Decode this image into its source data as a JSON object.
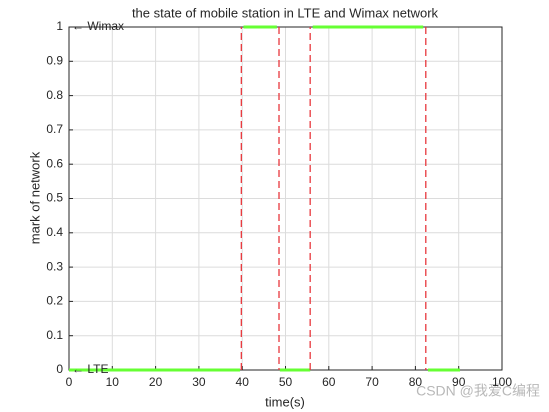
{
  "chart_data": {
    "type": "line",
    "title": "the state of mobile station in LTE and Wimax network",
    "x_label": "time(s)",
    "y_label": "mark of network",
    "xlim": [
      0,
      100
    ],
    "xticks": [
      0,
      10,
      20,
      30,
      40,
      50,
      60,
      70,
      80,
      90,
      100
    ],
    "ylim": [
      0,
      1
    ],
    "yticks": [
      0,
      0.1,
      0.2,
      0.3,
      0.4,
      0.5,
      0.6,
      0.7,
      0.8,
      0.9,
      1
    ],
    "grid": true,
    "series": [
      {
        "color": "#66ff33",
        "markers": true,
        "x": [
          0,
          39.5,
          null,
          40.3,
          48,
          null,
          48.7,
          55.7,
          null,
          56.3,
          81.8,
          null,
          82.9,
          90.3
        ],
        "values": [
          0,
          0,
          null,
          1,
          1,
          null,
          0,
          0,
          null,
          1,
          1,
          null,
          0,
          0
        ]
      },
      {
        "color": "#e8383d",
        "dashed": true,
        "x": [
          39.8,
          39.8,
          null,
          48.5,
          48.5,
          null,
          55.7,
          55.7,
          null,
          82.4,
          82.4
        ],
        "values": [
          0,
          1,
          null,
          1,
          0,
          null,
          0,
          1,
          null,
          1,
          0
        ]
      }
    ],
    "annotations": [
      {
        "text": "← Wimax",
        "x": 0,
        "y": 1
      },
      {
        "text": "← LTE",
        "x": 0,
        "y": 0
      }
    ],
    "watermark": "CSDN @我爱C编程"
  }
}
